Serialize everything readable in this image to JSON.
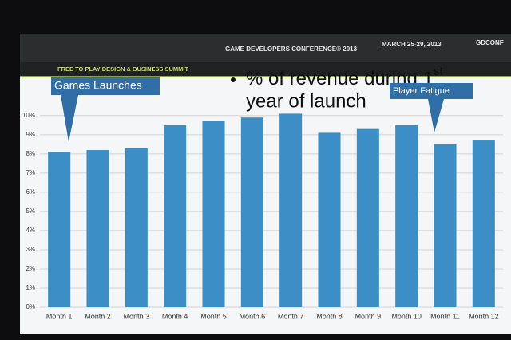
{
  "header": {
    "conference": "GAME DEVELOPERS CONFERENCE® 2013",
    "dates": "MARCH 25-29, 2013",
    "site": "GDCONF",
    "summit": "FREE TO PLAY DESIGN & BUSINESS SUMMIT"
  },
  "chart_data": {
    "type": "bar",
    "title": "% of revenue during 1",
    "title_sup": "st",
    "title_line2": "year of launch",
    "categories": [
      "Month 1",
      "Month 2",
      "Month 3",
      "Month 4",
      "Month 5",
      "Month 6",
      "Month 7",
      "Month 8",
      "Month 9",
      "Month 10",
      "Month 11",
      "Month 12"
    ],
    "values": [
      8.1,
      8.2,
      8.3,
      9.5,
      9.7,
      9.9,
      10.1,
      9.1,
      9.3,
      9.5,
      8.5,
      8.7
    ],
    "color": "#3b8fc6",
    "ylim": [
      0,
      10.2
    ],
    "yticks": [
      {
        "value": 0,
        "label": "0%"
      },
      {
        "value": 1,
        "label": "1%"
      },
      {
        "value": 2,
        "label": "2%"
      },
      {
        "value": 3,
        "label": "3%"
      },
      {
        "value": 4,
        "label": "4%"
      },
      {
        "value": 5,
        "label": "5%"
      },
      {
        "value": 6,
        "label": "6%"
      },
      {
        "value": 7,
        "label": "7%"
      },
      {
        "value": 8,
        "label": "8%"
      },
      {
        "value": 9,
        "label": "9%"
      },
      {
        "value": 10,
        "label": "10%"
      }
    ],
    "grid": true,
    "annotations": [
      {
        "text": "Games Launches"
      },
      {
        "text": "Player Fatigue"
      }
    ]
  }
}
